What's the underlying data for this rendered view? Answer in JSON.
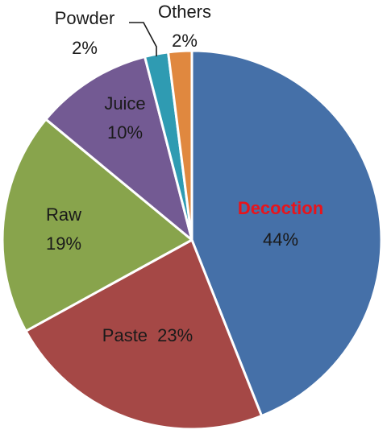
{
  "chart_data": {
    "type": "pie",
    "title": "",
    "slices": [
      {
        "label": "Decoction",
        "value": 44,
        "value_label": "44%",
        "color": "#4570a8",
        "highlight_color": "#e8141b"
      },
      {
        "label": "Paste",
        "value": 23,
        "value_label": "23%",
        "color": "#a54846"
      },
      {
        "label": "Raw",
        "value": 19,
        "value_label": "19%",
        "color": "#88a44c"
      },
      {
        "label": "Juice",
        "value": 10,
        "value_label": "10%",
        "color": "#735a93"
      },
      {
        "label": "Powder",
        "value": 2,
        "value_label": "2%",
        "color": "#2f9bb2"
      },
      {
        "label": "Others",
        "value": 2,
        "value_label": "2%",
        "color": "#e0883f"
      }
    ],
    "legend": "none",
    "start_angle": "12 o'clock",
    "direction": "clockwise"
  }
}
